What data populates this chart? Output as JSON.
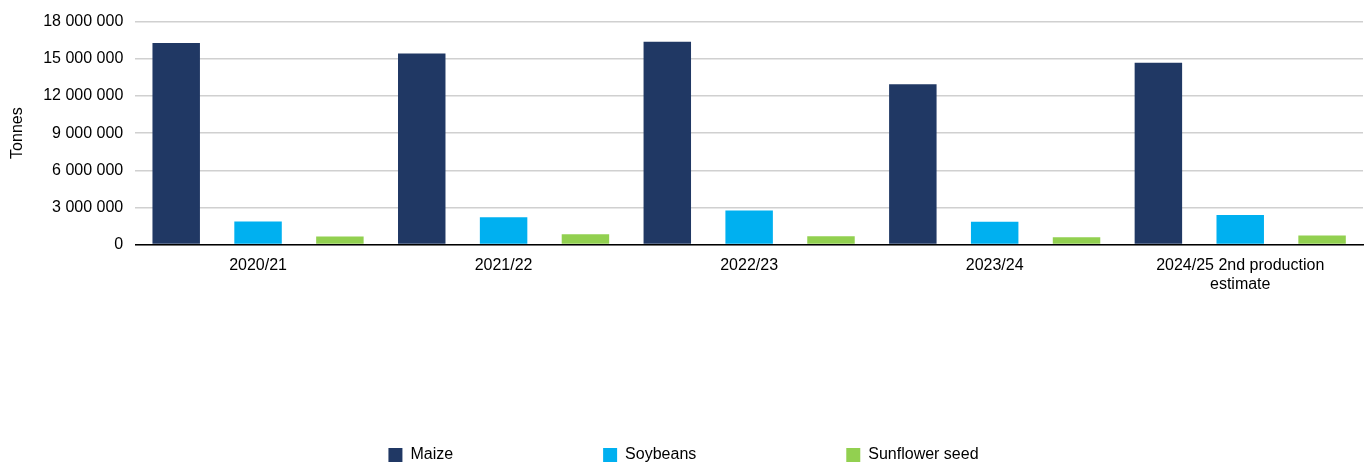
{
  "chart_data": {
    "type": "bar",
    "ylabel": "Tonnes",
    "categories": [
      "2020/21",
      "2021/22",
      "2022/23",
      "2023/24",
      "2024/25 2nd production estimate"
    ],
    "series": [
      {
        "name": "Maize",
        "color": "#203864",
        "values": [
          16280000,
          15430000,
          16380000,
          12940000,
          14670000
        ]
      },
      {
        "name": "Soybeans",
        "color": "#00b0f0",
        "values": [
          1860000,
          2210000,
          2760000,
          1840000,
          2390000
        ]
      },
      {
        "name": "Sunflower seed",
        "color": "#92d050",
        "values": [
          650000,
          830000,
          670000,
          590000,
          730000
        ]
      }
    ],
    "ylim": [
      0,
      18000000
    ],
    "yticks": [
      {
        "value": 0,
        "label": "0"
      },
      {
        "value": 3000000,
        "label": "3 000 000"
      },
      {
        "value": 6000000,
        "label": "6 000 000"
      },
      {
        "value": 9000000,
        "label": "9 000 000"
      },
      {
        "value": 12000000,
        "label": "12 000 000"
      },
      {
        "value": 15000000,
        "label": "15 000 000"
      },
      {
        "value": 18000000,
        "label": "18 000 000"
      }
    ],
    "grid": "y",
    "legend": "bottom"
  }
}
